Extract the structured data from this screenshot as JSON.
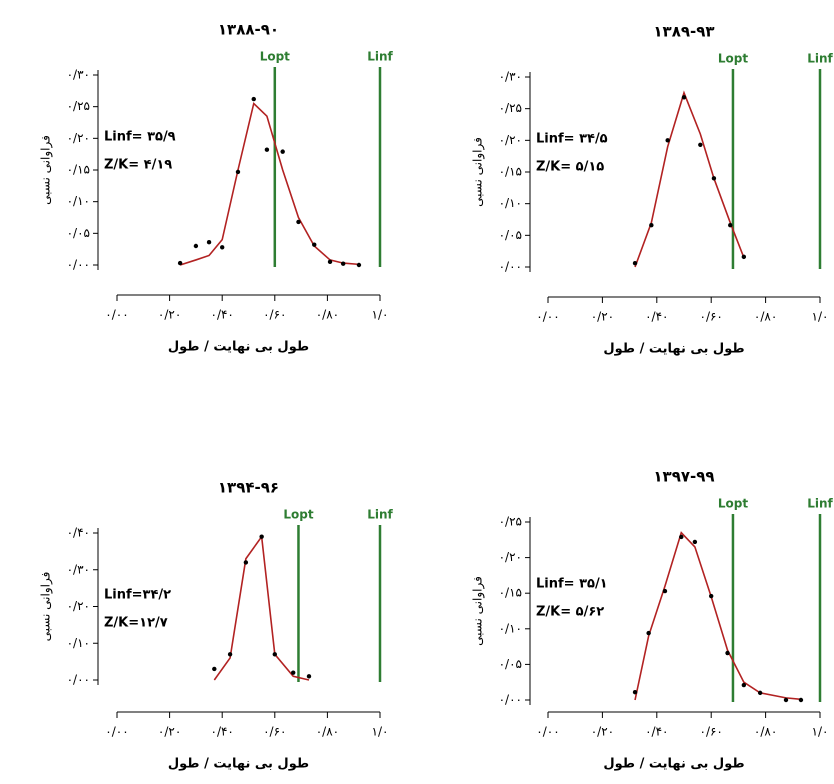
{
  "chart_data": [
    {
      "type": "line",
      "title": "۱۳۸۸-۹۰",
      "ylabel": "فراوانی نسبی",
      "xlabel": "طول بی نهایت / طول",
      "annotations": [
        "Linf= ۳۵/۹",
        "Z/K= ۴/۱۹"
      ],
      "vlines": [
        {
          "value": 0.6,
          "label": "Lopt",
          "color": "#2e7d32"
        },
        {
          "value": 1.0,
          "label": "Linf",
          "color": "#2e7d32"
        }
      ],
      "xlim": [
        0,
        1
      ],
      "ylim": [
        0,
        0.3
      ],
      "xticks": [
        {
          "value": 0,
          "label": "۰/۰۰"
        },
        {
          "value": 0.2,
          "label": "۰/۲۰"
        },
        {
          "value": 0.4,
          "label": "۰/۴۰"
        },
        {
          "value": 0.6,
          "label": "۰/۶۰"
        },
        {
          "value": 0.8,
          "label": "۰/۸۰"
        },
        {
          "value": 1.0,
          "label": "۱/۰"
        }
      ],
      "yticks": [
        {
          "value": 0,
          "label": "۰/۰۰"
        },
        {
          "value": 0.05,
          "label": "۰/۰۵"
        },
        {
          "value": 0.1,
          "label": "۰/۱۰"
        },
        {
          "value": 0.15,
          "label": "۰/۱۵"
        },
        {
          "value": 0.2,
          "label": "۰/۲۰"
        },
        {
          "value": 0.25,
          "label": "۰/۲۵"
        },
        {
          "value": 0.3,
          "label": "۰/۳۰"
        }
      ],
      "x": [
        0.24,
        0.3,
        0.35,
        0.4,
        0.46,
        0.52,
        0.57,
        0.63,
        0.69,
        0.75,
        0.81,
        0.86,
        0.92
      ],
      "series": [
        {
          "type": "line",
          "color": "#b22222",
          "values": [
            0.0,
            0.008,
            0.015,
            0.04,
            0.15,
            0.255,
            0.235,
            0.15,
            0.075,
            0.03,
            0.008,
            0.003,
            0.001
          ]
        },
        {
          "type": "scatter",
          "color": "#000000",
          "values": [
            0.003,
            0.03,
            0.036,
            0.028,
            0.147,
            0.262,
            0.182,
            0.179,
            0.068,
            0.032,
            0.005,
            0.002,
            0.0
          ]
        }
      ]
    },
    {
      "type": "line",
      "title": "۱۳۸۹-۹۳",
      "ylabel": "فراوانی نسبی",
      "xlabel": "طول بی نهایت / طول",
      "annotations": [
        "Linf= ۳۴/۵",
        "Z/K= ۵/۱۵"
      ],
      "vlines": [
        {
          "value": 0.68,
          "label": "Lopt",
          "color": "#2e7d32"
        },
        {
          "value": 1.0,
          "label": "Linf",
          "color": "#2e7d32"
        }
      ],
      "xlim": [
        0,
        1
      ],
      "ylim": [
        0,
        0.3
      ],
      "xticks": [
        {
          "value": 0,
          "label": "۰/۰۰"
        },
        {
          "value": 0.2,
          "label": "۰/۲۰"
        },
        {
          "value": 0.4,
          "label": "۰/۴۰"
        },
        {
          "value": 0.6,
          "label": "۰/۶۰"
        },
        {
          "value": 0.8,
          "label": "۰/۸۰"
        },
        {
          "value": 1.0,
          "label": "۱/۰"
        }
      ],
      "yticks": [
        {
          "value": 0,
          "label": "۰/۰۰"
        },
        {
          "value": 0.05,
          "label": "۰/۰۵"
        },
        {
          "value": 0.1,
          "label": "۰/۱۰"
        },
        {
          "value": 0.15,
          "label": "۰/۱۵"
        },
        {
          "value": 0.2,
          "label": "۰/۲۰"
        },
        {
          "value": 0.25,
          "label": "۰/۲۵"
        },
        {
          "value": 0.3,
          "label": "۰/۳۰"
        }
      ],
      "x": [
        0.32,
        0.38,
        0.44,
        0.5,
        0.56,
        0.61,
        0.67,
        0.72
      ],
      "series": [
        {
          "type": "line",
          "color": "#b22222",
          "values": [
            0.0,
            0.07,
            0.19,
            0.275,
            0.21,
            0.14,
            0.07,
            0.015
          ]
        },
        {
          "type": "scatter",
          "color": "#000000",
          "values": [
            0.006,
            0.066,
            0.2,
            0.268,
            0.193,
            0.14,
            0.066,
            0.016
          ]
        }
      ]
    },
    {
      "type": "line",
      "title": "۱۳۹۴-۹۶",
      "ylabel": "فراوانی نسبی",
      "xlabel": "طول بی نهایت / طول",
      "annotations": [
        "Linf=۳۴/۲",
        "Z/K=۱۲/۷"
      ],
      "vlines": [
        {
          "value": 0.69,
          "label": "Lopt",
          "color": "#2e7d32"
        },
        {
          "value": 1.0,
          "label": "Linf",
          "color": "#2e7d32"
        }
      ],
      "xlim": [
        0,
        1
      ],
      "ylim": [
        0,
        0.4
      ],
      "xticks": [
        {
          "value": 0,
          "label": "۰/۰۰"
        },
        {
          "value": 0.2,
          "label": "۰/۲۰"
        },
        {
          "value": 0.4,
          "label": "۰/۴۰"
        },
        {
          "value": 0.6,
          "label": "۰/۶۰"
        },
        {
          "value": 0.8,
          "label": "۰/۸۰"
        },
        {
          "value": 1.0,
          "label": "۱/۰"
        }
      ],
      "yticks": [
        {
          "value": 0,
          "label": "۰/۰۰"
        },
        {
          "value": 0.1,
          "label": "۰/۱۰"
        },
        {
          "value": 0.2,
          "label": "۰/۲۰"
        },
        {
          "value": 0.3,
          "label": "۰/۳۰"
        },
        {
          "value": 0.4,
          "label": "۰/۴۰"
        }
      ],
      "x": [
        0.37,
        0.43,
        0.49,
        0.55,
        0.6,
        0.67,
        0.73
      ],
      "series": [
        {
          "type": "line",
          "color": "#b22222",
          "values": [
            0.0,
            0.06,
            0.33,
            0.39,
            0.07,
            0.01,
            0.0
          ]
        },
        {
          "type": "scatter",
          "color": "#000000",
          "values": [
            0.03,
            0.07,
            0.32,
            0.39,
            0.07,
            0.02,
            0.01
          ]
        }
      ]
    },
    {
      "type": "line",
      "title": "۱۳۹۷-۹۹",
      "ylabel": "فراوانی نسبی",
      "xlabel": "طول بی نهایت / طول",
      "annotations": [
        "Linf= ۳۵/۱",
        "Z/K= ۵/۶۲"
      ],
      "vlines": [
        {
          "value": 0.68,
          "label": "Lopt",
          "color": "#2e7d32"
        },
        {
          "value": 1.0,
          "label": "Linf",
          "color": "#2e7d32"
        }
      ],
      "xlim": [
        0,
        1
      ],
      "ylim": [
        0,
        0.25
      ],
      "xticks": [
        {
          "value": 0,
          "label": "۰/۰۰"
        },
        {
          "value": 0.2,
          "label": "۰/۲۰"
        },
        {
          "value": 0.4,
          "label": "۰/۴۰"
        },
        {
          "value": 0.6,
          "label": "۰/۶۰"
        },
        {
          "value": 0.8,
          "label": "۰/۸۰"
        },
        {
          "value": 1.0,
          "label": "۱/۰"
        }
      ],
      "yticks": [
        {
          "value": 0,
          "label": "۰/۰۰"
        },
        {
          "value": 0.05,
          "label": "۰/۰۵"
        },
        {
          "value": 0.1,
          "label": "۰/۱۰"
        },
        {
          "value": 0.15,
          "label": "۰/۱۵"
        },
        {
          "value": 0.2,
          "label": "۰/۲۰"
        },
        {
          "value": 0.25,
          "label": "۰/۲۵"
        }
      ],
      "x": [
        0.32,
        0.37,
        0.43,
        0.49,
        0.54,
        0.6,
        0.66,
        0.72,
        0.78,
        0.875,
        0.93
      ],
      "series": [
        {
          "type": "line",
          "color": "#b22222",
          "values": [
            0.0,
            0.09,
            0.16,
            0.235,
            0.215,
            0.145,
            0.07,
            0.025,
            0.01,
            0.003,
            0.001
          ]
        },
        {
          "type": "scatter",
          "color": "#000000",
          "values": [
            0.011,
            0.094,
            0.153,
            0.229,
            0.222,
            0.146,
            0.066,
            0.021,
            0.01,
            0.0,
            0.0
          ]
        }
      ]
    }
  ]
}
